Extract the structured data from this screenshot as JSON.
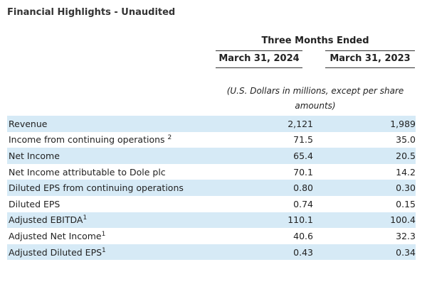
{
  "title": "Financial Highlights - Unaudited",
  "period_header": "Three Months Ended",
  "columns": [
    "March 31, 2024",
    "March 31, 2023"
  ],
  "units_note": "(U.S. Dollars in millions, except per share amounts)",
  "rows": [
    {
      "label": "Revenue",
      "sup": "",
      "v2024": "2,121",
      "v2023": "1,989"
    },
    {
      "label": "Income from continuing operations ",
      "sup": "2",
      "v2024": "71.5",
      "v2023": "35.0"
    },
    {
      "label": "Net Income",
      "sup": "",
      "v2024": "65.4",
      "v2023": "20.5"
    },
    {
      "label": "Net Income attributable to Dole plc",
      "sup": "",
      "v2024": "70.1",
      "v2023": "14.2"
    },
    {
      "label": "Diluted EPS from continuing operations",
      "sup": "",
      "v2024": "0.80",
      "v2023": "0.30"
    },
    {
      "label": "Diluted EPS",
      "sup": "",
      "v2024": "0.74",
      "v2023": "0.15"
    },
    {
      "label": "Adjusted EBITDA",
      "sup": "1",
      "v2024": "110.1",
      "v2023": "100.4"
    },
    {
      "label": "Adjusted Net Income",
      "sup": "1",
      "v2024": "40.6",
      "v2023": "32.3"
    },
    {
      "label": "Adjusted Diluted EPS",
      "sup": "1",
      "v2024": "0.43",
      "v2023": "0.34"
    }
  ],
  "colors": {
    "row_shade": "#d6eaf6",
    "text": "#222222",
    "rule": "#333333"
  }
}
